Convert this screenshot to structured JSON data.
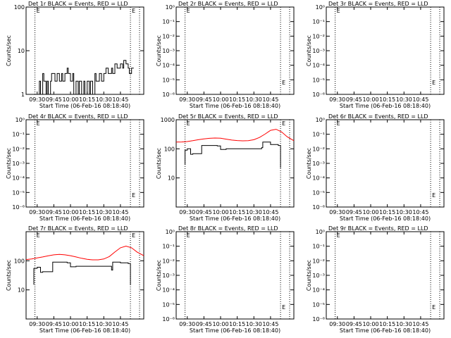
{
  "colors": {
    "events": "#000000",
    "lld": "#ff0000",
    "background": "#ffffff",
    "axes": "#000000"
  },
  "chart_data": [
    {
      "type": "line",
      "title": "Det 1r  BLACK = Events, RED = LLD",
      "xlabel": "Start Time (06-Feb-16 08:18:40)",
      "ylabel": "Counts/sec",
      "scale": "log",
      "x_ticks": [
        "09:30",
        "09:45",
        "10:00",
        "10:15",
        "10:30",
        "10:45"
      ],
      "y_ticks": [
        "1",
        "10",
        "100"
      ],
      "y_tick_values": [
        1,
        10,
        100
      ],
      "ylim": [
        1,
        100
      ],
      "xlim_minutes": [
        560,
        666
      ],
      "markers": [
        {
          "minute": 568,
          "label": "E"
        },
        {
          "minute": 654,
          "label": "E"
        }
      ],
      "series": [
        {
          "color": "#000000",
          "x_minutes": [
            568,
            572,
            572,
            573,
            573,
            575,
            575,
            576,
            576,
            578,
            578,
            579,
            579,
            580,
            580,
            582,
            582,
            583,
            583,
            586,
            586,
            588,
            588,
            590,
            590,
            592,
            592,
            593,
            593,
            595,
            595,
            597,
            597,
            598,
            598,
            600,
            600,
            602,
            602,
            603,
            603,
            605,
            605,
            607,
            607,
            608,
            608,
            610,
            610,
            612,
            612,
            613,
            613,
            615,
            615,
            617,
            617,
            618,
            618,
            620,
            620,
            622,
            622,
            623,
            623,
            626,
            626,
            628,
            628,
            630,
            630,
            632,
            632,
            634,
            634,
            637,
            637,
            638,
            638,
            640,
            640,
            642,
            642,
            645,
            645,
            647,
            647,
            648,
            648,
            650,
            650,
            652,
            652,
            653,
            653,
            655,
            655,
            657
          ],
          "values": [
            1,
            1,
            2,
            2,
            1,
            1,
            3,
            3,
            2,
            2,
            1,
            1,
            2,
            2,
            1,
            1,
            2,
            2,
            3,
            3,
            2,
            2,
            3,
            3,
            2,
            2,
            3,
            3,
            2,
            2,
            3,
            3,
            4,
            4,
            3,
            3,
            2,
            2,
            3,
            3,
            1,
            1,
            2,
            2,
            1,
            1,
            2,
            2,
            1,
            1,
            2,
            2,
            1,
            1,
            2,
            2,
            1,
            1,
            2,
            2,
            1,
            1,
            3,
            3,
            2,
            2,
            3,
            3,
            2,
            2,
            3,
            3,
            4,
            4,
            3,
            3,
            4,
            4,
            3,
            3,
            5,
            5,
            4,
            4,
            5,
            5,
            4,
            4,
            6,
            6,
            5,
            5,
            4,
            4,
            3,
            3,
            4,
            4
          ]
        }
      ]
    },
    {
      "type": "line",
      "title": "Det 2r  BLACK = Events, RED = LLD",
      "xlabel": "Start Time (06-Feb-16 08:18:40)",
      "ylabel": "Counts/sec",
      "scale": "log",
      "x_ticks": [
        "09:30",
        "09:45",
        "10:00",
        "10:15",
        "10:30",
        "10:45"
      ],
      "y_ticks": [
        "10⁰",
        "10⁻¹",
        "10⁻²",
        "10⁻³",
        "10⁻⁴",
        "10⁻⁵",
        "10⁻⁶"
      ],
      "y_tick_values": [
        1,
        0.1,
        0.01,
        0.001,
        0.0001,
        1e-05,
        1e-06
      ],
      "ylim": [
        1,
        1e-06
      ],
      "xlim_minutes": [
        560,
        666
      ],
      "markers": [
        {
          "minute": 568,
          "label": "E"
        },
        {
          "minute": 654,
          "label": "E"
        }
      ],
      "series": []
    },
    {
      "type": "line",
      "title": "Det 3r  BLACK = Events, RED = LLD",
      "xlabel": "Start Time (06-Feb-16 08:18:40)",
      "ylabel": "Counts/sec",
      "scale": "log",
      "x_ticks": [
        "09:30",
        "09:45",
        "10:00",
        "10:15",
        "10:30",
        "10:45"
      ],
      "y_ticks": [
        "10⁰",
        "10⁻¹",
        "10⁻²",
        "10⁻³",
        "10⁻⁴",
        "10⁻⁵",
        "10⁻⁶"
      ],
      "y_tick_values": [
        1,
        0.1,
        0.01,
        0.001,
        0.0001,
        1e-05,
        1e-06
      ],
      "ylim": [
        1,
        1e-06
      ],
      "xlim_minutes": [
        560,
        666
      ],
      "markers": [
        {
          "minute": 568,
          "label": "E"
        },
        {
          "minute": 654,
          "label": "E"
        }
      ],
      "series": []
    },
    {
      "type": "line",
      "title": "Det 4r  BLACK = Events, RED = LLD",
      "xlabel": "Start Time (06-Feb-16 08:18:40)",
      "ylabel": "Counts/sec",
      "scale": "log",
      "x_ticks": [
        "09:30",
        "09:45",
        "10:00",
        "10:15",
        "10:30",
        "10:45"
      ],
      "y_ticks": [
        "10⁰",
        "10⁻¹",
        "10⁻²",
        "10⁻³",
        "10⁻⁴",
        "10⁻⁵",
        "10⁻⁶"
      ],
      "y_tick_values": [
        1,
        0.1,
        0.01,
        0.001,
        0.0001,
        1e-05,
        1e-06
      ],
      "ylim": [
        1,
        1e-06
      ],
      "xlim_minutes": [
        560,
        666
      ],
      "markers": [
        {
          "minute": 568,
          "label": "E"
        },
        {
          "minute": 654,
          "label": "E"
        }
      ],
      "series": []
    },
    {
      "type": "line",
      "title": "Det 5r  BLACK = Events, RED = LLD",
      "xlabel": "Start Time (06-Feb-16 08:18:40)",
      "ylabel": "Counts/sec",
      "scale": "log",
      "x_ticks": [
        "09:30",
        "09:45",
        "10:00",
        "10:15",
        "10:30",
        "10:45"
      ],
      "y_ticks": [
        "10",
        "100",
        "1000"
      ],
      "y_tick_values": [
        10,
        100,
        1000
      ],
      "ylim": [
        1,
        1000
      ],
      "xlim_minutes": [
        560,
        666
      ],
      "markers": [
        {
          "minute": 568,
          "label": "E"
        },
        {
          "minute": 654,
          "label": "E"
        }
      ],
      "series": [
        {
          "color": "#ff0000",
          "x_minutes": [
            560,
            565,
            570,
            575,
            580,
            585,
            590,
            595,
            600,
            605,
            610,
            615,
            620,
            625,
            630,
            635,
            640,
            645,
            650,
            655,
            660,
            666
          ],
          "values": [
            170,
            172,
            178,
            190,
            205,
            220,
            230,
            235,
            232,
            215,
            200,
            192,
            188,
            190,
            205,
            245,
            320,
            430,
            470,
            380,
            260,
            190
          ]
        },
        {
          "color": "#000000",
          "x_minutes": [
            568,
            568,
            570,
            570,
            573,
            573,
            575,
            575,
            583,
            583,
            597,
            597,
            600,
            600,
            605,
            605,
            637,
            637,
            638,
            638,
            645,
            645,
            652,
            652,
            654,
            654
          ],
          "values": [
            28,
            90,
            90,
            100,
            100,
            65,
            65,
            68,
            68,
            130,
            130,
            125,
            125,
            95,
            95,
            100,
            100,
            110,
            110,
            170,
            170,
            140,
            140,
            130,
            130,
            22
          ]
        }
      ]
    },
    {
      "type": "line",
      "title": "Det 6r  BLACK = Events, RED = LLD",
      "xlabel": "Start Time (06-Feb-16 08:18:40)",
      "ylabel": "Counts/sec",
      "scale": "log",
      "x_ticks": [
        "09:30",
        "09:45",
        "10:00",
        "10:15",
        "10:30",
        "10:45"
      ],
      "y_ticks": [
        "10⁰",
        "10⁻¹",
        "10⁻²",
        "10⁻³",
        "10⁻⁴",
        "10⁻⁵",
        "10⁻⁶"
      ],
      "y_tick_values": [
        1,
        0.1,
        0.01,
        0.001,
        0.0001,
        1e-05,
        1e-06
      ],
      "ylim": [
        1,
        1e-06
      ],
      "xlim_minutes": [
        560,
        666
      ],
      "markers": [
        {
          "minute": 568,
          "label": "E"
        },
        {
          "minute": 654,
          "label": "E"
        }
      ],
      "series": []
    },
    {
      "type": "line",
      "title": "Det 7r  BLACK = Events, RED = LLD",
      "xlabel": "Start Time (06-Feb-16 08:18:40)",
      "ylabel": "Counts/sec",
      "scale": "log",
      "x_ticks": [
        "09:30",
        "09:45",
        "10:00",
        "10:15",
        "10:30",
        "10:45"
      ],
      "y_ticks": [
        "10",
        "100"
      ],
      "y_tick_values": [
        10,
        100
      ],
      "ylim": [
        1,
        1000
      ],
      "xlim_minutes": [
        560,
        666
      ],
      "markers": [
        {
          "minute": 568,
          "label": "E"
        },
        {
          "minute": 654,
          "label": "E"
        }
      ],
      "series": [
        {
          "color": "#ff0000",
          "x_minutes": [
            560,
            565,
            570,
            575,
            580,
            585,
            590,
            595,
            600,
            605,
            610,
            615,
            620,
            625,
            630,
            635,
            640,
            645,
            650,
            655,
            660,
            666
          ],
          "values": [
            110,
            115,
            125,
            135,
            148,
            160,
            165,
            160,
            150,
            135,
            122,
            112,
            108,
            108,
            115,
            140,
            200,
            280,
            320,
            280,
            200,
            150
          ]
        },
        {
          "color": "#000000",
          "x_minutes": [
            567,
            567,
            570,
            570,
            573,
            573,
            575,
            575,
            584,
            584,
            597,
            597,
            600,
            600,
            605,
            605,
            637,
            637,
            638,
            638,
            645,
            645,
            652,
            652,
            654,
            654
          ],
          "values": [
            15,
            55,
            55,
            60,
            60,
            40,
            40,
            42,
            42,
            90,
            90,
            85,
            85,
            62,
            62,
            65,
            65,
            48,
            48,
            90,
            90,
            85,
            85,
            80,
            80,
            15
          ]
        }
      ]
    },
    {
      "type": "line",
      "title": "Det 8r  BLACK = Events, RED = LLD",
      "xlabel": "Start Time (06-Feb-16 08:18:40)",
      "ylabel": "Counts/sec",
      "scale": "log",
      "x_ticks": [
        "09:30",
        "09:45",
        "10:00",
        "10:15",
        "10:30",
        "10:45"
      ],
      "y_ticks": [
        "10⁰",
        "10⁻¹",
        "10⁻²",
        "10⁻³",
        "10⁻⁴",
        "10⁻⁵",
        "10⁻⁶"
      ],
      "y_tick_values": [
        1,
        0.1,
        0.01,
        0.001,
        0.0001,
        1e-05,
        1e-06
      ],
      "ylim": [
        1,
        1e-06
      ],
      "xlim_minutes": [
        560,
        666
      ],
      "markers": [
        {
          "minute": 568,
          "label": "E"
        },
        {
          "minute": 654,
          "label": "E"
        }
      ],
      "series": []
    },
    {
      "type": "line",
      "title": "Det 9r  BLACK = Events, RED = LLD",
      "xlabel": "Start Time (06-Feb-16 08:18:40)",
      "ylabel": "Counts/sec",
      "scale": "log",
      "x_ticks": [
        "09:30",
        "09:45",
        "10:00",
        "10:15",
        "10:30",
        "10:45"
      ],
      "y_ticks": [
        "10⁰",
        "10⁻¹",
        "10⁻²",
        "10⁻³",
        "10⁻⁴",
        "10⁻⁵",
        "10⁻⁶"
      ],
      "y_tick_values": [
        1,
        0.1,
        0.01,
        0.001,
        0.0001,
        1e-05,
        1e-06
      ],
      "ylim": [
        1,
        1e-06
      ],
      "xlim_minutes": [
        560,
        666
      ],
      "markers": [
        {
          "minute": 568,
          "label": "E"
        },
        {
          "minute": 654,
          "label": "E"
        }
      ],
      "series": []
    }
  ]
}
